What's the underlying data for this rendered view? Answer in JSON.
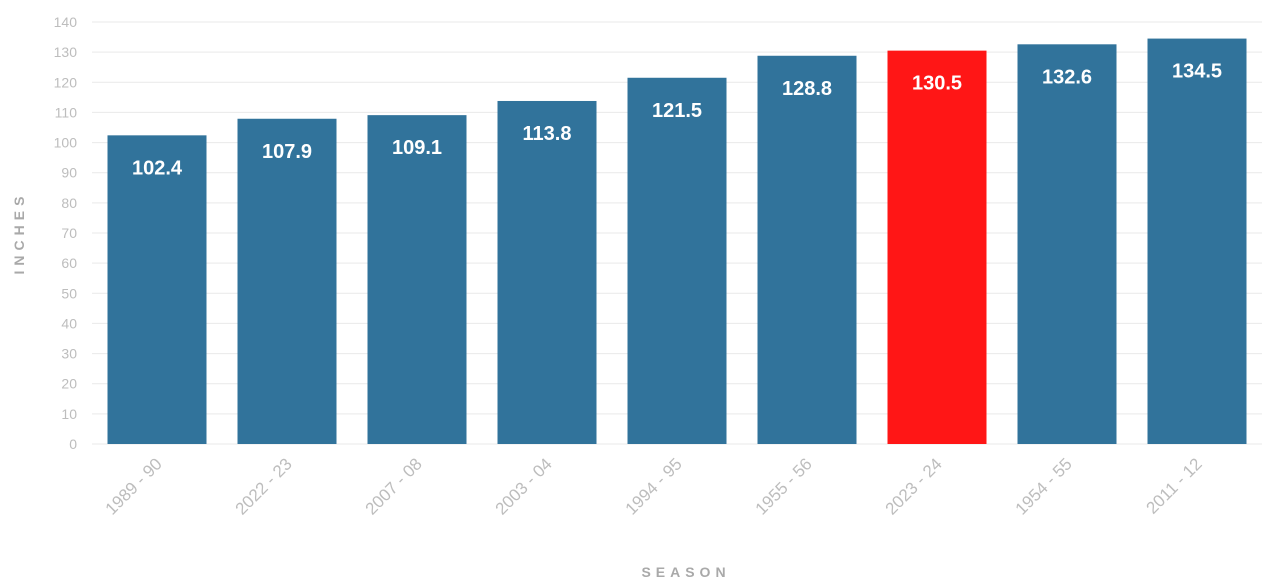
{
  "chart_data": {
    "type": "bar",
    "title": "",
    "xlabel": "SEASON",
    "ylabel": "INCHES",
    "categories": [
      "1989 - 90",
      "2022 - 23",
      "2007 - 08",
      "2003 - 04",
      "1994 - 95",
      "1955 - 56",
      "2023 - 24",
      "1954 - 55",
      "2011 - 12"
    ],
    "values": [
      102.4,
      107.9,
      109.1,
      113.8,
      121.5,
      128.8,
      130.5,
      132.6,
      134.5
    ],
    "data_labels": [
      "102.4",
      "107.9",
      "109.1",
      "113.8",
      "121.5",
      "128.8",
      "130.5",
      "132.6",
      "134.5"
    ],
    "ylim": [
      0,
      140
    ],
    "yticks": [
      "0",
      "10",
      "20",
      "30",
      "40",
      "50",
      "60",
      "70",
      "80",
      "90",
      "100",
      "110",
      "120",
      "130",
      "140"
    ],
    "grid": true,
    "legend": "none",
    "highlight_index": 6,
    "colors": {
      "bar": "#31739b",
      "highlight": "#ff1616"
    }
  }
}
